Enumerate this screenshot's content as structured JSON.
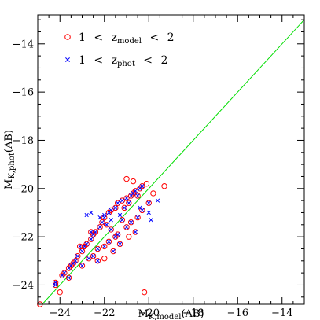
{
  "chart_data": {
    "type": "scatter",
    "xlabel": {
      "main": "M",
      "sub": "K,model",
      "tail": "(AB)"
    },
    "ylabel": {
      "main": "M",
      "sub": "K,phot",
      "tail": "(AB)"
    },
    "xlim": [
      -25,
      -13
    ],
    "ylim": [
      -24.8,
      -12.8
    ],
    "xticks": [
      -24,
      -22,
      -20,
      -18,
      -16,
      -14
    ],
    "yticks": [
      -24,
      -22,
      -20,
      -18,
      -16,
      -14
    ],
    "reference_line": {
      "type": "one-to-one",
      "color": "#00dd00"
    },
    "legend": {
      "placement": "top-left",
      "entries": [
        {
          "marker": "circle",
          "color": "#ff0000",
          "lo": "1",
          "op": "<",
          "var": "z",
          "sub": "model",
          "op2": "<",
          "hi": "2"
        },
        {
          "marker": "x",
          "color": "#0000ff",
          "lo": "1",
          "op": "<",
          "var": "z",
          "sub": "phot",
          "op2": "<",
          "hi": "2"
        }
      ]
    },
    "series": [
      {
        "name": "1 < z_model < 2",
        "marker": "circle",
        "color": "#ff0000",
        "points": [
          [
            -24.9,
            -24.8
          ],
          [
            -24.2,
            -24.0
          ],
          [
            -24.2,
            -23.9
          ],
          [
            -23.9,
            -23.6
          ],
          [
            -23.8,
            -23.5
          ],
          [
            -23.6,
            -23.3
          ],
          [
            -23.5,
            -23.2
          ],
          [
            -23.4,
            -23.1
          ],
          [
            -23.3,
            -23.0
          ],
          [
            -23.2,
            -22.8
          ],
          [
            -23.0,
            -22.6
          ],
          [
            -22.9,
            -22.4
          ],
          [
            -22.8,
            -22.3
          ],
          [
            -22.6,
            -22.1
          ],
          [
            -22.5,
            -21.9
          ],
          [
            -22.4,
            -21.8
          ],
          [
            -22.2,
            -21.6
          ],
          [
            -22.1,
            -21.4
          ],
          [
            -22.0,
            -21.2
          ],
          [
            -21.8,
            -21.0
          ],
          [
            -21.7,
            -20.9
          ],
          [
            -21.5,
            -20.8
          ],
          [
            -21.4,
            -20.6
          ],
          [
            -21.2,
            -20.5
          ],
          [
            -21.0,
            -20.4
          ],
          [
            -20.8,
            -20.3
          ],
          [
            -20.7,
            -20.2
          ],
          [
            -20.6,
            -20.1
          ],
          [
            -20.4,
            -20.0
          ],
          [
            -20.3,
            -19.9
          ],
          [
            -21.0,
            -19.6
          ],
          [
            -20.7,
            -19.7
          ],
          [
            -19.8,
            -20.2
          ],
          [
            -19.3,
            -19.9
          ],
          [
            -24.0,
            -24.3
          ],
          [
            -23.0,
            -23.2
          ],
          [
            -22.5,
            -22.8
          ],
          [
            -22.0,
            -22.4
          ],
          [
            -21.5,
            -22.0
          ],
          [
            -21.0,
            -21.6
          ],
          [
            -20.5,
            -21.2
          ],
          [
            -20.3,
            -20.9
          ],
          [
            -20.0,
            -20.6
          ],
          [
            -22.0,
            -22.9
          ],
          [
            -21.6,
            -22.6
          ],
          [
            -21.3,
            -22.3
          ],
          [
            -21.8,
            -22.2
          ],
          [
            -20.2,
            -24.3
          ],
          [
            -20.6,
            -21.8
          ],
          [
            -20.9,
            -22.0
          ],
          [
            -21.2,
            -21.3
          ],
          [
            -22.3,
            -22.5
          ],
          [
            -22.7,
            -22.9
          ],
          [
            -23.6,
            -23.7
          ],
          [
            -21.9,
            -21.5
          ],
          [
            -21.1,
            -20.8
          ],
          [
            -20.9,
            -20.6
          ],
          [
            -20.5,
            -20.3
          ],
          [
            -22.6,
            -21.8
          ],
          [
            -23.1,
            -22.4
          ],
          [
            -21.4,
            -21.9
          ],
          [
            -20.8,
            -21.4
          ],
          [
            -20.1,
            -19.8
          ],
          [
            -22.3,
            -23.0
          ],
          [
            -21.7,
            -21.7
          ]
        ]
      },
      {
        "name": "1 < z_phot < 2",
        "marker": "x",
        "color": "#0000ff",
        "points": [
          [
            -24.2,
            -24.0
          ],
          [
            -24.2,
            -23.9
          ],
          [
            -23.9,
            -23.6
          ],
          [
            -23.8,
            -23.5
          ],
          [
            -23.6,
            -23.3
          ],
          [
            -23.5,
            -23.2
          ],
          [
            -23.4,
            -23.1
          ],
          [
            -23.3,
            -23.0
          ],
          [
            -23.2,
            -22.8
          ],
          [
            -23.0,
            -22.6
          ],
          [
            -22.9,
            -22.4
          ],
          [
            -22.8,
            -22.3
          ],
          [
            -22.6,
            -22.1
          ],
          [
            -22.5,
            -21.9
          ],
          [
            -22.4,
            -21.8
          ],
          [
            -22.2,
            -21.6
          ],
          [
            -22.1,
            -21.4
          ],
          [
            -22.0,
            -21.2
          ],
          [
            -21.8,
            -21.0
          ],
          [
            -21.7,
            -20.9
          ],
          [
            -21.5,
            -20.8
          ],
          [
            -21.4,
            -20.6
          ],
          [
            -21.2,
            -20.5
          ],
          [
            -21.0,
            -20.4
          ],
          [
            -20.8,
            -20.3
          ],
          [
            -20.7,
            -20.2
          ],
          [
            -20.6,
            -20.1
          ],
          [
            -20.4,
            -20.0
          ],
          [
            -20.3,
            -19.9
          ],
          [
            -23.0,
            -23.2
          ],
          [
            -22.5,
            -22.8
          ],
          [
            -22.0,
            -22.4
          ],
          [
            -21.5,
            -22.0
          ],
          [
            -21.0,
            -21.6
          ],
          [
            -20.5,
            -21.2
          ],
          [
            -20.3,
            -20.9
          ],
          [
            -20.0,
            -20.6
          ],
          [
            -21.6,
            -22.6
          ],
          [
            -21.3,
            -22.3
          ],
          [
            -21.8,
            -22.2
          ],
          [
            -20.6,
            -21.8
          ],
          [
            -21.2,
            -21.3
          ],
          [
            -22.3,
            -22.5
          ],
          [
            -22.7,
            -22.9
          ],
          [
            -23.6,
            -23.7
          ],
          [
            -21.9,
            -21.5
          ],
          [
            -21.1,
            -20.8
          ],
          [
            -20.9,
            -20.6
          ],
          [
            -20.5,
            -20.3
          ],
          [
            -22.6,
            -21.8
          ],
          [
            -23.1,
            -22.4
          ],
          [
            -21.4,
            -21.9
          ],
          [
            -20.8,
            -21.4
          ],
          [
            -22.3,
            -23.0
          ],
          [
            -21.7,
            -21.7
          ],
          [
            -22.2,
            -21.2
          ],
          [
            -22.0,
            -21.1
          ],
          [
            -21.7,
            -21.3
          ],
          [
            -22.6,
            -21.0
          ],
          [
            -22.8,
            -21.1
          ],
          [
            -19.6,
            -20.5
          ],
          [
            -20.0,
            -21.0
          ],
          [
            -19.9,
            -21.3
          ],
          [
            -20.4,
            -20.8
          ],
          [
            -21.3,
            -21.1
          ]
        ]
      }
    ]
  }
}
